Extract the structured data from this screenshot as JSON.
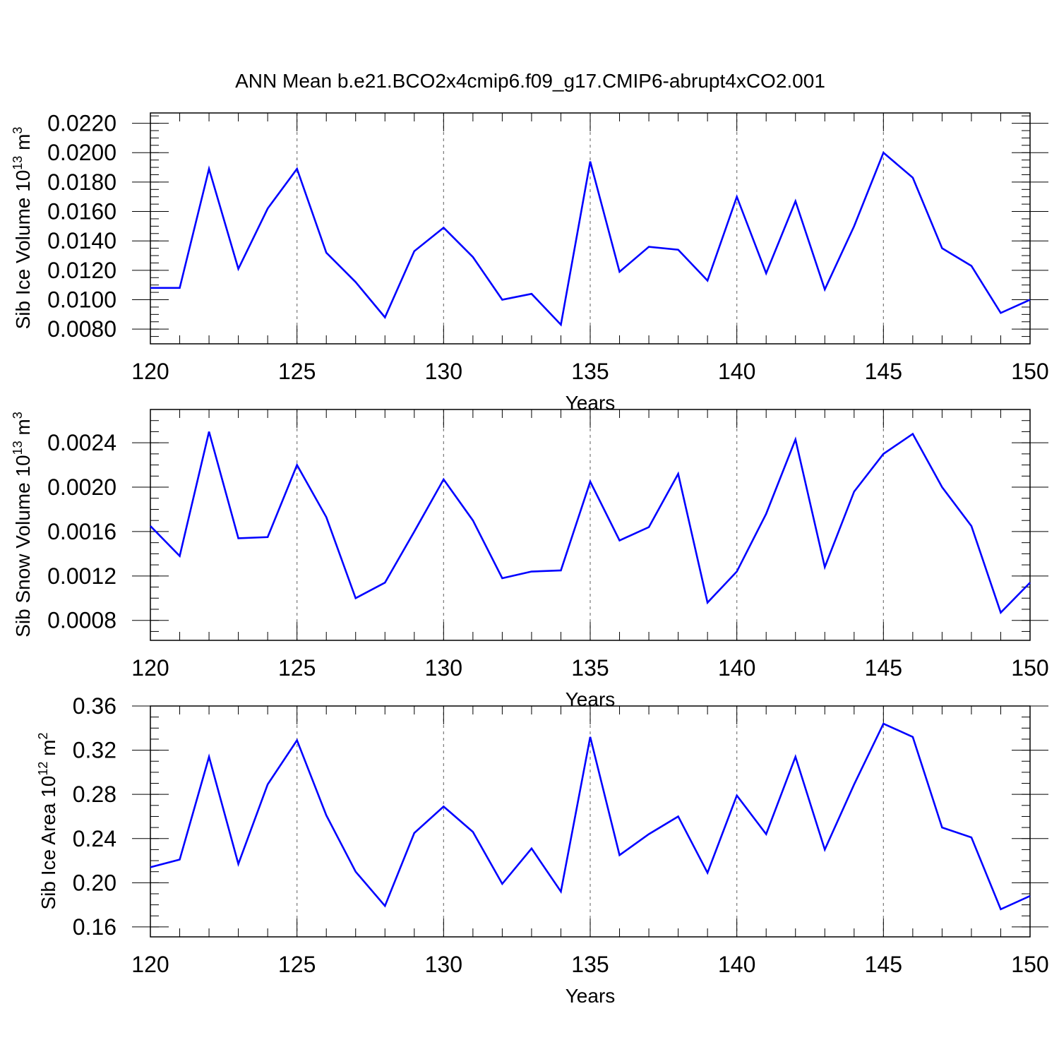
{
  "figure": {
    "title": "ANN Mean b.e21.BCO2x4cmip6.f09_g17.CMIP6-abrupt4xCO2.001"
  },
  "chart_data": [
    {
      "type": "line",
      "xlabel": "Years",
      "ylabel": {
        "base": "Sib Ice Volume 10",
        "exp": "13",
        "unit": " m",
        "unit_exp": "3"
      },
      "xlim": [
        120,
        150
      ],
      "ylim": [
        0.007,
        0.0227
      ],
      "x_ticks": [
        120,
        125,
        130,
        135,
        140,
        145,
        150
      ],
      "x_tick_labels": [
        "120",
        "125",
        "130",
        "135",
        "140",
        "145",
        "150"
      ],
      "y_ticks": [
        0.008,
        0.01,
        0.012,
        0.014,
        0.016,
        0.018,
        0.02,
        0.022
      ],
      "y_tick_labels": [
        "0.0080",
        "0.0100",
        "0.0120",
        "0.0140",
        "0.0160",
        "0.0180",
        "0.0200",
        "0.0220"
      ],
      "y_minor_step": 0.0005,
      "grid": "vertical dashed at major x ticks",
      "line_color": "#0000ff",
      "x": [
        120,
        121,
        122,
        123,
        124,
        125,
        126,
        127,
        128,
        129,
        130,
        131,
        132,
        133,
        134,
        135,
        136,
        137,
        138,
        139,
        140,
        141,
        142,
        143,
        144,
        145,
        146,
        147,
        148,
        149,
        150
      ],
      "values": [
        0.0108,
        0.0108,
        0.0189,
        0.0121,
        0.0162,
        0.0189,
        0.0132,
        0.0112,
        0.0088,
        0.0133,
        0.0149,
        0.0129,
        0.01,
        0.0104,
        0.0083,
        0.0194,
        0.0119,
        0.0136,
        0.0134,
        0.0113,
        0.017,
        0.0118,
        0.0167,
        0.0107,
        0.015,
        0.02,
        0.0183,
        0.0135,
        0.0123,
        0.0091,
        0.01
      ]
    },
    {
      "type": "line",
      "xlabel": "Years",
      "ylabel": {
        "base": "Sib Snow Volume 10",
        "exp": "13",
        "unit": " m",
        "unit_exp": "3"
      },
      "xlim": [
        120,
        150
      ],
      "ylim": [
        0.00062,
        0.0027
      ],
      "x_ticks": [
        120,
        125,
        130,
        135,
        140,
        145,
        150
      ],
      "x_tick_labels": [
        "120",
        "125",
        "130",
        "135",
        "140",
        "145",
        "150"
      ],
      "y_ticks": [
        0.0008,
        0.0012,
        0.0016,
        0.002,
        0.0024
      ],
      "y_tick_labels": [
        "0.0008",
        "0.0012",
        "0.0016",
        "0.0020",
        "0.0024"
      ],
      "y_minor_step": 0.0001,
      "grid": "vertical dashed at major x ticks",
      "line_color": "#0000ff",
      "x": [
        120,
        121,
        122,
        123,
        124,
        125,
        126,
        127,
        128,
        129,
        130,
        131,
        132,
        133,
        134,
        135,
        136,
        137,
        138,
        139,
        140,
        141,
        142,
        143,
        144,
        145,
        146,
        147,
        148,
        149,
        150
      ],
      "values": [
        0.00165,
        0.00138,
        0.0025,
        0.00154,
        0.00155,
        0.0022,
        0.00173,
        0.001,
        0.00114,
        0.0016,
        0.00207,
        0.0017,
        0.00118,
        0.00124,
        0.00125,
        0.00205,
        0.00152,
        0.00164,
        0.00212,
        0.00096,
        0.00124,
        0.00176,
        0.00243,
        0.00128,
        0.00196,
        0.0023,
        0.00248,
        0.002,
        0.00165,
        0.00087,
        0.00114
      ]
    },
    {
      "type": "line",
      "xlabel": "Years",
      "ylabel": {
        "base": "Sib Ice Area 10",
        "exp": "12",
        "unit": " m",
        "unit_exp": "2"
      },
      "xlim": [
        120,
        150
      ],
      "ylim": [
        0.151,
        0.36
      ],
      "x_ticks": [
        120,
        125,
        130,
        135,
        140,
        145,
        150
      ],
      "x_tick_labels": [
        "120",
        "125",
        "130",
        "135",
        "140",
        "145",
        "150"
      ],
      "y_ticks": [
        0.16,
        0.2,
        0.24,
        0.28,
        0.32,
        0.36
      ],
      "y_tick_labels": [
        "0.16",
        "0.20",
        "0.24",
        "0.28",
        "0.32",
        "0.36"
      ],
      "y_minor_step": 0.01,
      "grid": "vertical dashed at major x ticks",
      "line_color": "#0000ff",
      "x": [
        120,
        121,
        122,
        123,
        124,
        125,
        126,
        127,
        128,
        129,
        130,
        131,
        132,
        133,
        134,
        135,
        136,
        137,
        138,
        139,
        140,
        141,
        142,
        143,
        144,
        145,
        146,
        147,
        148,
        149,
        150
      ],
      "values": [
        0.214,
        0.221,
        0.314,
        0.217,
        0.289,
        0.329,
        0.261,
        0.21,
        0.179,
        0.245,
        0.269,
        0.246,
        0.199,
        0.231,
        0.192,
        0.332,
        0.225,
        0.244,
        0.26,
        0.209,
        0.279,
        0.244,
        0.314,
        0.23,
        0.289,
        0.344,
        0.332,
        0.25,
        0.241,
        0.176,
        0.188
      ]
    }
  ]
}
